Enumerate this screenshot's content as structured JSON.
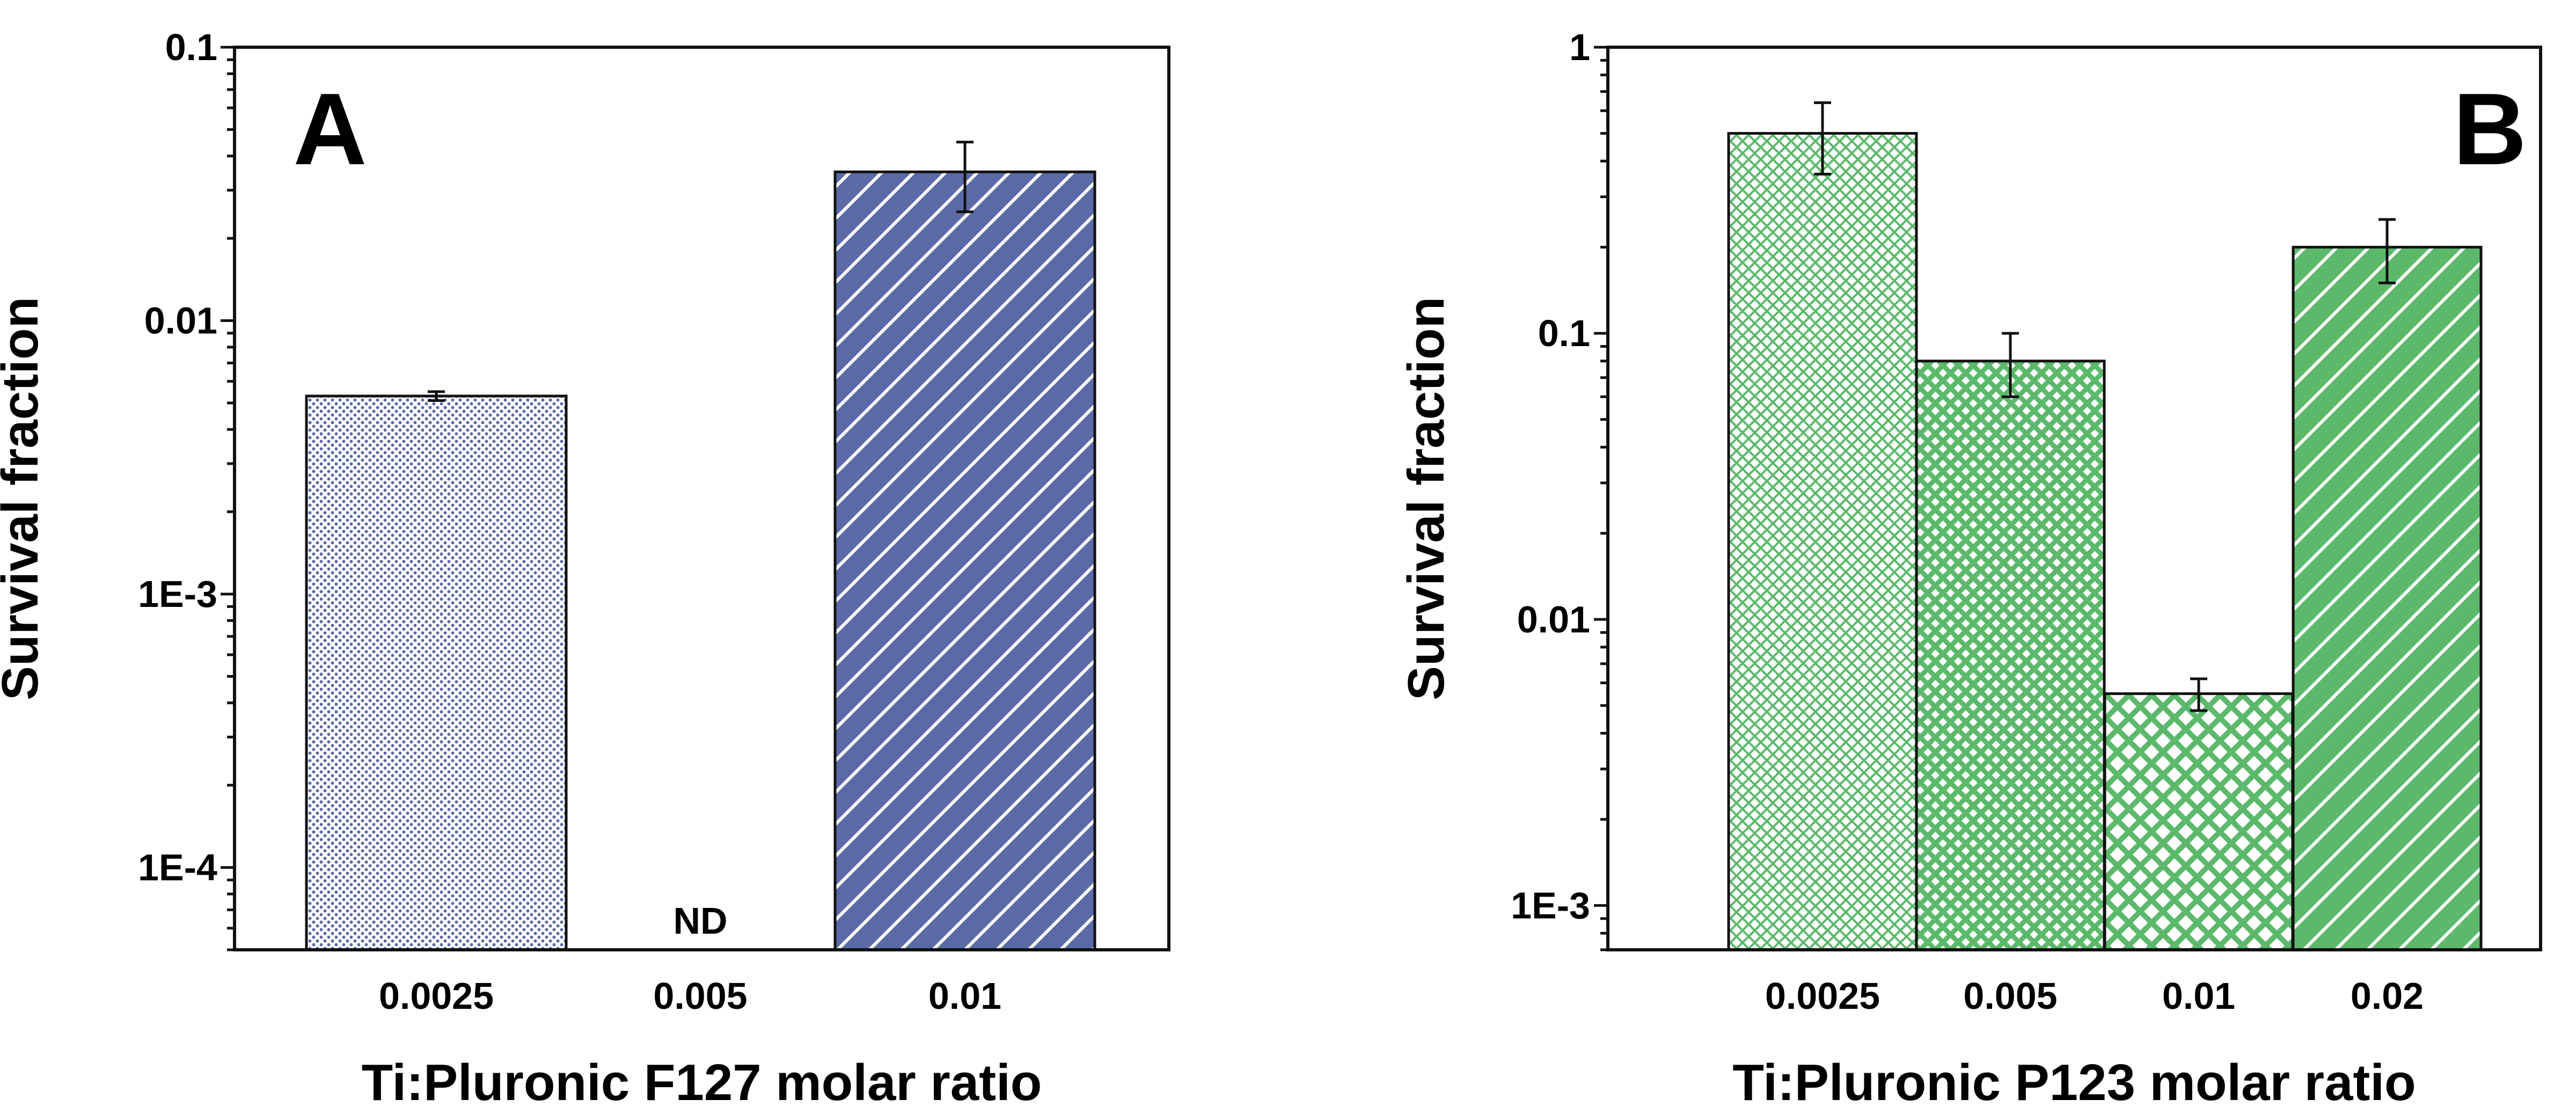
{
  "chart_data": [
    {
      "type": "bar",
      "panel_label": "A",
      "xlabel": "Ti:Pluronic F127 molar ratio",
      "ylabel": "Survival fraction",
      "yscale": "log",
      "ylim": [
        5e-05,
        0.1
      ],
      "yticks": [
        0.1,
        0.01,
        0.001,
        0.0001
      ],
      "ytick_labels": [
        "0.1",
        "0.01",
        "1E-3",
        "1E-4"
      ],
      "categories": [
        "0.0025",
        "0.005",
        "0.01"
      ],
      "values": [
        0.0053,
        null,
        0.035
      ],
      "error_low": [
        0.0051,
        null,
        0.025
      ],
      "error_high": [
        0.0055,
        null,
        0.045
      ],
      "bar_annotations": [
        "",
        "ND",
        ""
      ],
      "bar_patterns": [
        "dots",
        "none",
        "diagonal-lines"
      ],
      "color": "#5b6aa6",
      "legend": "none",
      "grid": false
    },
    {
      "type": "bar",
      "panel_label": "B",
      "xlabel": "Ti:Pluronic P123 molar ratio",
      "ylabel": "Survival fraction",
      "yscale": "log",
      "ylim": [
        0.0007,
        1
      ],
      "yticks": [
        1,
        0.1,
        0.01,
        0.001
      ],
      "ytick_labels": [
        "1",
        "0.1",
        "0.01",
        "1E-3"
      ],
      "categories": [
        "0.0025",
        "0.005",
        "0.01",
        "0.02"
      ],
      "values": [
        0.5,
        0.08,
        0.0055,
        0.2
      ],
      "error_low": [
        0.36,
        0.06,
        0.0048,
        0.15
      ],
      "error_high": [
        0.64,
        0.1,
        0.0062,
        0.25
      ],
      "bar_annotations": [
        "",
        "",
        "",
        ""
      ],
      "bar_patterns": [
        "fine-crosshatch",
        "crosshatch",
        "coarse-crosshatch",
        "diagonal-lines"
      ],
      "color": "#5cb96c",
      "legend": "none",
      "grid": false
    }
  ]
}
